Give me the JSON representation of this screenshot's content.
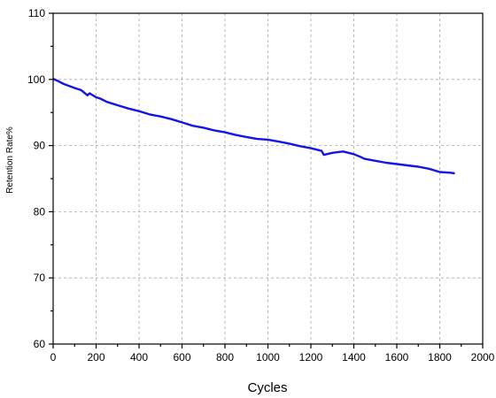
{
  "chart_data": {
    "type": "line",
    "title": "",
    "xlabel": "Cycles",
    "ylabel": "Retention Rate%",
    "xlim": [
      0,
      2000
    ],
    "ylim": [
      60,
      110
    ],
    "x_ticks": [
      0,
      200,
      400,
      600,
      800,
      1000,
      1200,
      1400,
      1600,
      1800,
      2000
    ],
    "y_ticks": [
      60,
      70,
      80,
      90,
      100,
      110
    ],
    "grid": true,
    "series": [
      {
        "color": "#1414e6",
        "x": [
          0,
          20,
          50,
          100,
          130,
          160,
          170,
          200,
          220,
          250,
          300,
          350,
          400,
          450,
          500,
          550,
          600,
          650,
          700,
          750,
          800,
          850,
          900,
          950,
          1000,
          1050,
          1100,
          1150,
          1200,
          1250,
          1260,
          1300,
          1350,
          1400,
          1430,
          1450,
          1500,
          1550,
          1600,
          1650,
          1700,
          1750,
          1800,
          1850,
          1870
        ],
        "y": [
          100.1,
          99.8,
          99.3,
          98.7,
          98.4,
          97.6,
          97.9,
          97.3,
          97.1,
          96.6,
          96.1,
          95.6,
          95.2,
          94.7,
          94.4,
          94.0,
          93.5,
          93.0,
          92.7,
          92.3,
          92.0,
          91.6,
          91.3,
          91.0,
          90.9,
          90.6,
          90.3,
          89.9,
          89.6,
          89.2,
          88.6,
          88.9,
          89.1,
          88.7,
          88.3,
          88.0,
          87.7,
          87.4,
          87.2,
          87.0,
          86.8,
          86.5,
          86.0,
          85.9,
          85.8
        ]
      }
    ]
  }
}
